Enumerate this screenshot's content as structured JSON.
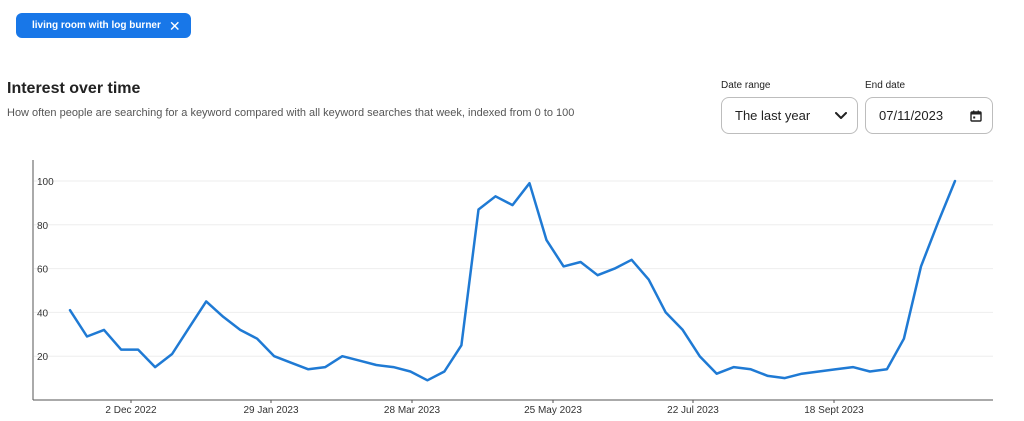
{
  "filter_chip": {
    "label": "living room with log burner"
  },
  "header": {
    "title": "Interest over time",
    "subtitle": "How often people are searching for a keyword compared with all keyword searches that week, indexed from 0 to 100"
  },
  "controls": {
    "date_range_label": "Date range",
    "date_range_value": "The last year",
    "end_date_label": "End date",
    "end_date_value": "07/11/2023"
  },
  "colors": {
    "accent": "#1877e8",
    "line": "#1f7ad4",
    "grid": "#eeeeee"
  },
  "chart_data": {
    "type": "line",
    "title": "Interest over time",
    "xlabel": "",
    "ylabel": "",
    "ylim": [
      0,
      100
    ],
    "y_ticks": [
      20,
      40,
      60,
      80,
      100
    ],
    "x_tick_labels": [
      "2 Dec 2022",
      "29 Jan 2023",
      "28 Mar 2023",
      "25 May 2023",
      "22 Jul 2023",
      "18 Sept 2023"
    ],
    "grid": true,
    "legend": "none",
    "series": [
      {
        "values": [
          41,
          29,
          32,
          23,
          23,
          15,
          21,
          33,
          45,
          38,
          32,
          28,
          20,
          17,
          14,
          15,
          20,
          18,
          16,
          15,
          13,
          9,
          13,
          25,
          87,
          93,
          89,
          99,
          73,
          61,
          63,
          57,
          60,
          64,
          55,
          40,
          32,
          20,
          12,
          15,
          14,
          11,
          10,
          12,
          13,
          14,
          15,
          13,
          14,
          28,
          61,
          81,
          100
        ]
      }
    ]
  }
}
